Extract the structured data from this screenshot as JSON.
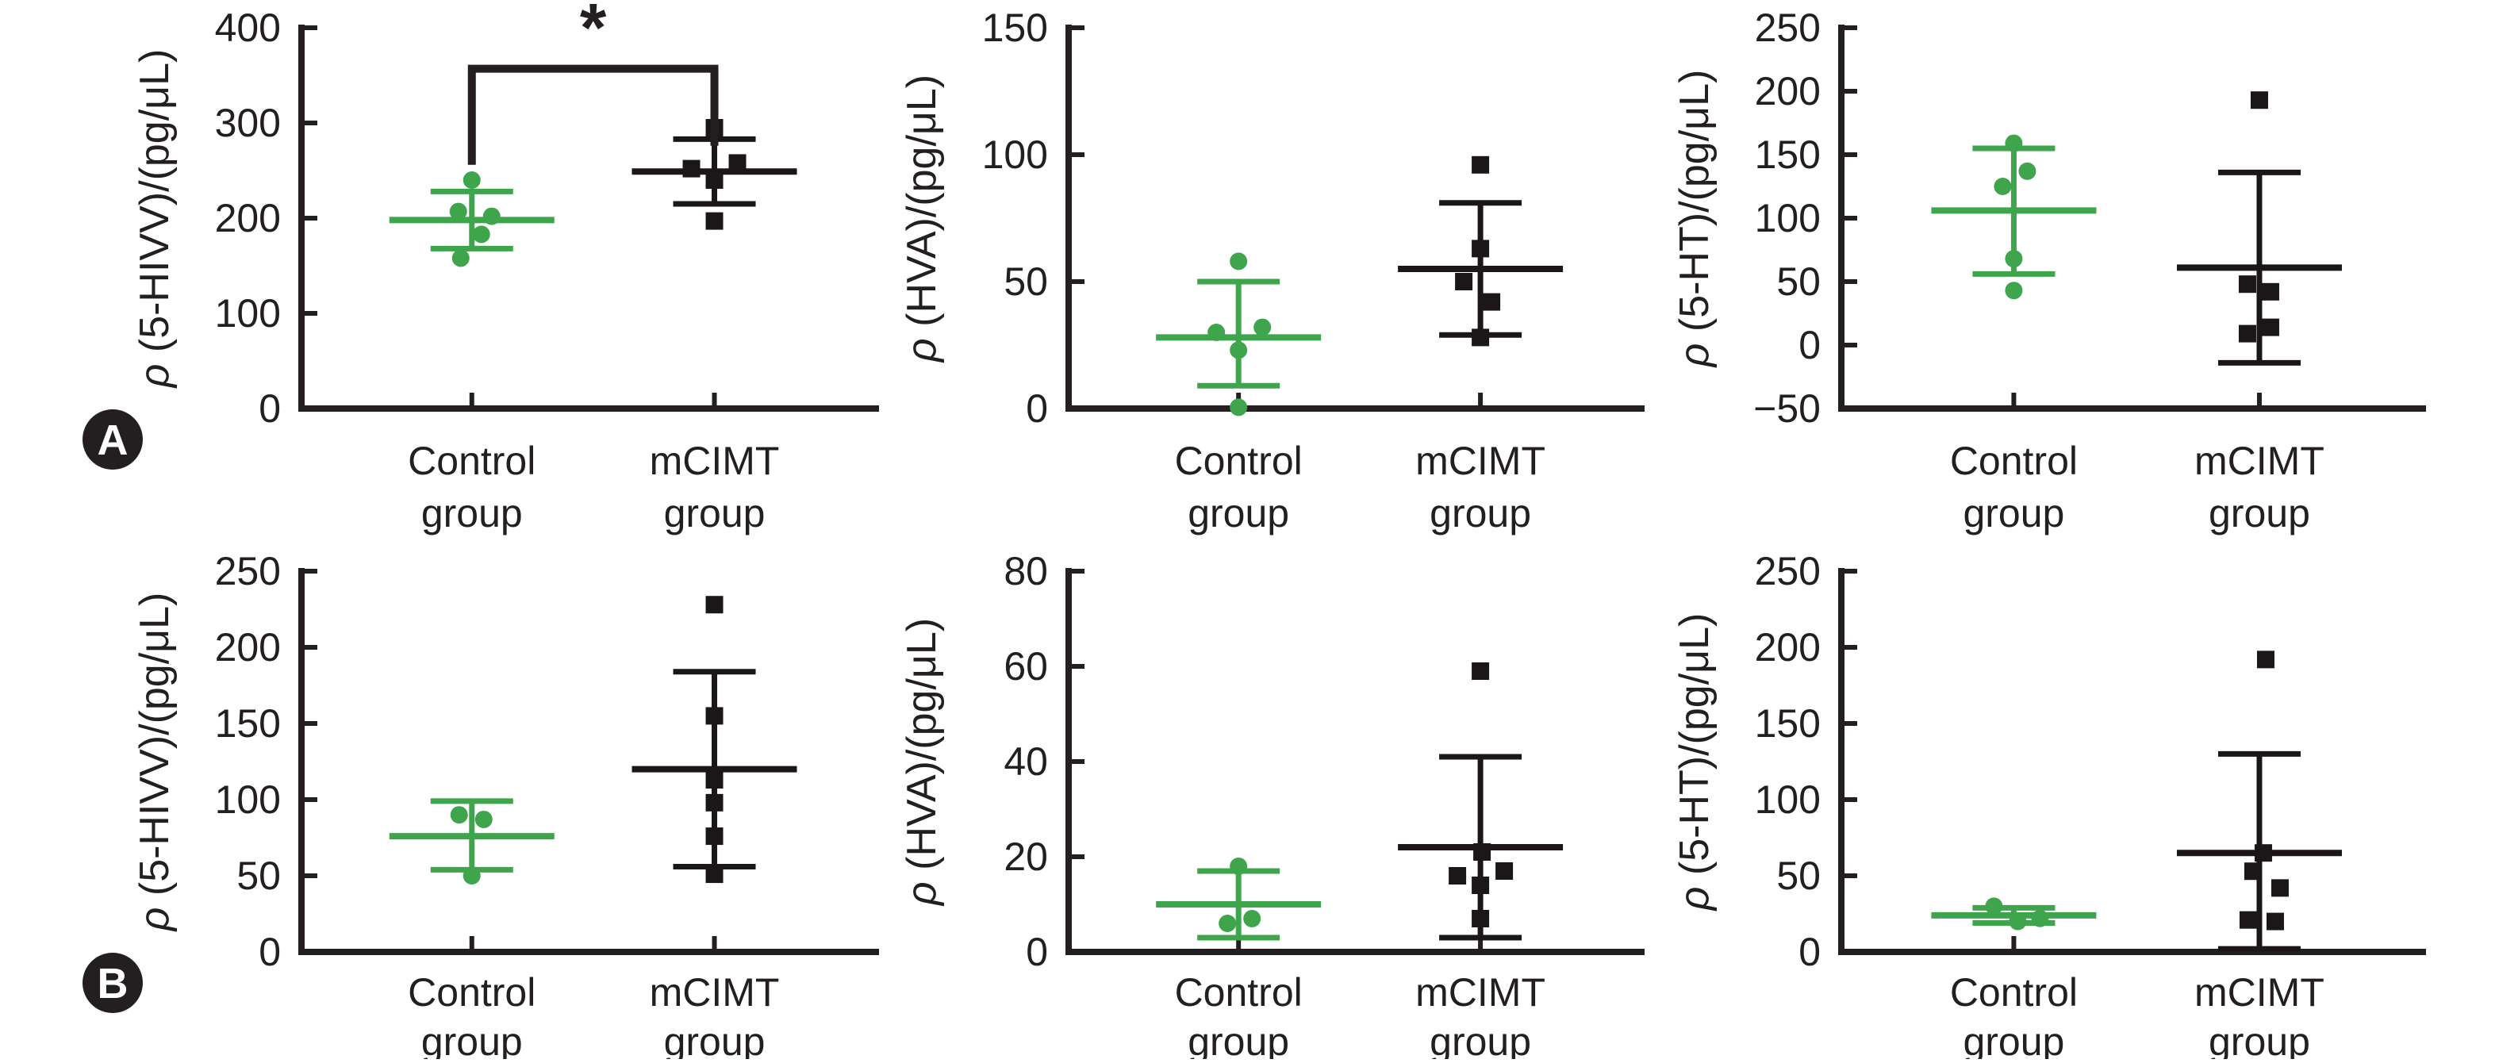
{
  "figure": {
    "panel_labels": {
      "a": "A",
      "b": "B"
    },
    "colors": {
      "control": "#3fa54c",
      "mcimt": "#1b1718",
      "axis": "#231f20",
      "background": "#ffffff",
      "badge": "#231f20"
    },
    "significance_star": "*"
  },
  "chart_data": [
    {
      "id": "A1",
      "row": "A",
      "col": 0,
      "type": "scatter",
      "ylabel": "ρ (5-HIVV)/(pg/μL)",
      "categories": [
        "Control group",
        "mCIMT group"
      ],
      "ylim": [
        0,
        400
      ],
      "yticks": [
        0,
        100,
        200,
        300,
        400
      ],
      "grid": false,
      "legend": "none",
      "series": [
        {
          "name": "Control group",
          "marker": "circle",
          "color": "#3fa54c",
          "values": [
            240,
            207,
            202,
            183,
            158
          ],
          "jitter": [
            0,
            -17,
            25,
            12,
            -14
          ],
          "mean": 198,
          "sd_high": 228,
          "sd_low": 168
        },
        {
          "name": "mCIMT group",
          "marker": "square",
          "color": "#1b1718",
          "values": [
            295,
            252,
            258,
            240,
            197
          ],
          "jitter": [
            0,
            -29,
            29,
            0,
            0
          ],
          "mean": 249,
          "sd_high": 283,
          "sd_low": 215
        }
      ],
      "significance": {
        "label": "*",
        "bar_y": 357,
        "left_drop_to": 256,
        "right_drop_to": 276
      }
    },
    {
      "id": "A2",
      "row": "A",
      "col": 1,
      "type": "scatter",
      "ylabel": "ρ (HVA)/(pg/μL)",
      "categories": [
        "Control group",
        "mCIMT group"
      ],
      "ylim": [
        0,
        150
      ],
      "yticks": [
        0,
        50,
        100,
        150
      ],
      "grid": false,
      "legend": "none",
      "series": [
        {
          "name": "Control group",
          "marker": "circle",
          "color": "#3fa54c",
          "values": [
            58,
            30,
            32,
            23,
            0.5
          ],
          "jitter": [
            0,
            -28,
            30,
            0,
            0
          ],
          "mean": 28,
          "sd_high": 50,
          "sd_low": 9
        },
        {
          "name": "mCIMT group",
          "marker": "square",
          "color": "#1b1718",
          "values": [
            96,
            63,
            50,
            42,
            28
          ],
          "jitter": [
            0,
            0,
            -21,
            14,
            0
          ],
          "mean": 55,
          "sd_high": 81,
          "sd_low": 29
        }
      ],
      "significance": null
    },
    {
      "id": "A3",
      "row": "A",
      "col": 2,
      "type": "scatter",
      "ylabel": "ρ (5-HT)/(pg/μL)",
      "categories": [
        "Control group",
        "mCIMT group"
      ],
      "ylim": [
        -50,
        250
      ],
      "yticks": [
        -50,
        0,
        50,
        100,
        150,
        200,
        250
      ],
      "grid": false,
      "legend": "none",
      "series": [
        {
          "name": "Control group",
          "marker": "circle",
          "color": "#3fa54c",
          "values": [
            159,
            137,
            125,
            68,
            43
          ],
          "jitter": [
            0,
            17,
            -14,
            0,
            0
          ],
          "mean": 106,
          "sd_high": 155,
          "sd_low": 56
        },
        {
          "name": "mCIMT group",
          "marker": "square",
          "color": "#1b1718",
          "values": [
            193,
            48,
            42,
            14,
            9
          ],
          "jitter": [
            0,
            -15,
            14,
            14,
            -15
          ],
          "mean": 61,
          "sd_high": 136,
          "sd_low": -14
        }
      ],
      "significance": null
    },
    {
      "id": "B1",
      "row": "B",
      "col": 0,
      "type": "scatter",
      "ylabel": "ρ (5-HIVV)/(pg/μL)",
      "categories": [
        "Control group",
        "mCIMT group"
      ],
      "ylim": [
        0,
        250
      ],
      "yticks": [
        0,
        50,
        100,
        150,
        200,
        250
      ],
      "grid": false,
      "legend": "none",
      "series": [
        {
          "name": "Control group",
          "marker": "circle",
          "color": "#3fa54c",
          "values": [
            90,
            87,
            50
          ],
          "jitter": [
            -16,
            15,
            0
          ],
          "mean": 76,
          "sd_high": 99,
          "sd_low": 54
        },
        {
          "name": "mCIMT group",
          "marker": "square",
          "color": "#1b1718",
          "values": [
            228,
            155,
            113,
            98,
            76,
            51
          ],
          "jitter": [
            0,
            0,
            0,
            0,
            0,
            0
          ],
          "mean": 120,
          "sd_high": 184,
          "sd_low": 56
        }
      ],
      "significance": null
    },
    {
      "id": "B2",
      "row": "B",
      "col": 1,
      "type": "scatter",
      "ylabel": "ρ (HVA)/(pg/μL)",
      "categories": [
        "Control group",
        "mCIMT group"
      ],
      "ylim": [
        0,
        80
      ],
      "yticks": [
        0,
        20,
        40,
        60,
        80
      ],
      "grid": false,
      "legend": "none",
      "series": [
        {
          "name": "Control group",
          "marker": "circle",
          "color": "#3fa54c",
          "values": [
            18,
            6,
            7
          ],
          "jitter": [
            0,
            -14,
            17
          ],
          "mean": 10,
          "sd_high": 17,
          "sd_low": 3
        },
        {
          "name": "mCIMT group",
          "marker": "square",
          "color": "#1b1718",
          "values": [
            59,
            21,
            16,
            17,
            14,
            7
          ],
          "jitter": [
            0,
            2,
            -29,
            30,
            0,
            0
          ],
          "mean": 22,
          "sd_high": 41,
          "sd_low": 3
        }
      ],
      "significance": null
    },
    {
      "id": "B3",
      "row": "B",
      "col": 2,
      "type": "scatter",
      "ylabel": "ρ (5-HT)/(pg/μL)",
      "categories": [
        "Control group",
        "mCIMT group"
      ],
      "ylim": [
        0,
        250
      ],
      "yticks": [
        0,
        50,
        100,
        150,
        200,
        250
      ],
      "grid": false,
      "legend": "none",
      "series": [
        {
          "name": "Control group",
          "marker": "circle",
          "color": "#3fa54c",
          "values": [
            30,
            20,
            22
          ],
          "jitter": [
            -25,
            5,
            33
          ],
          "mean": 24,
          "sd_high": 29,
          "sd_low": 19
        },
        {
          "name": "mCIMT group",
          "marker": "square",
          "color": "#1b1718",
          "values": [
            192,
            65,
            53,
            42,
            21,
            20
          ],
          "jitter": [
            8,
            5,
            -8,
            26,
            -14,
            20
          ],
          "mean": 65,
          "sd_high": 130,
          "sd_low": 2
        }
      ],
      "significance": null
    }
  ]
}
